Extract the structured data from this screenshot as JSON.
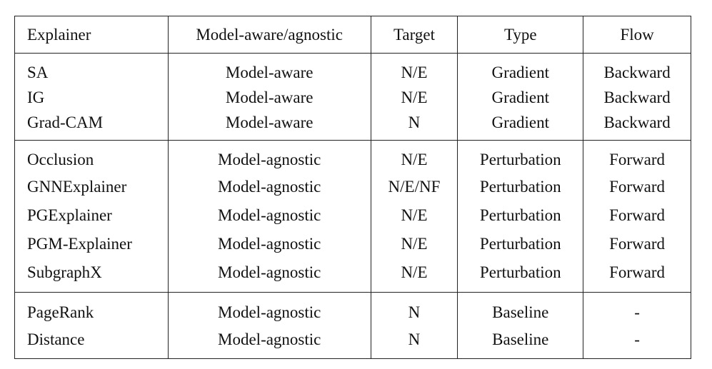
{
  "table": {
    "headers": [
      "Explainer",
      "Model-aware/agnostic",
      "Target",
      "Type",
      "Flow"
    ],
    "groups": [
      [
        [
          "SA",
          "Model-aware",
          "N/E",
          "Gradient",
          "Backward"
        ],
        [
          "IG",
          "Model-aware",
          "N/E",
          "Gradient",
          "Backward"
        ],
        [
          "Grad-CAM",
          "Model-aware",
          "N",
          "Gradient",
          "Backward"
        ]
      ],
      [
        [
          "Occlusion",
          "Model-agnostic",
          "N/E",
          "Perturbation",
          "Forward"
        ],
        [
          "GNNExplainer",
          "Model-agnostic",
          "N/E/NF",
          "Perturbation",
          "Forward"
        ],
        [
          "PGExplainer",
          "Model-agnostic",
          "N/E",
          "Perturbation",
          "Forward"
        ],
        [
          "PGM-Explainer",
          "Model-agnostic",
          "N/E",
          "Perturbation",
          "Forward"
        ],
        [
          "SubgraphX",
          "Model-agnostic",
          "N/E",
          "Perturbation",
          "Forward"
        ]
      ],
      [
        [
          "PageRank",
          "Model-agnostic",
          "N",
          "Baseline",
          "-"
        ],
        [
          "Distance",
          "Model-agnostic",
          "N",
          "Baseline",
          "-"
        ]
      ]
    ]
  }
}
